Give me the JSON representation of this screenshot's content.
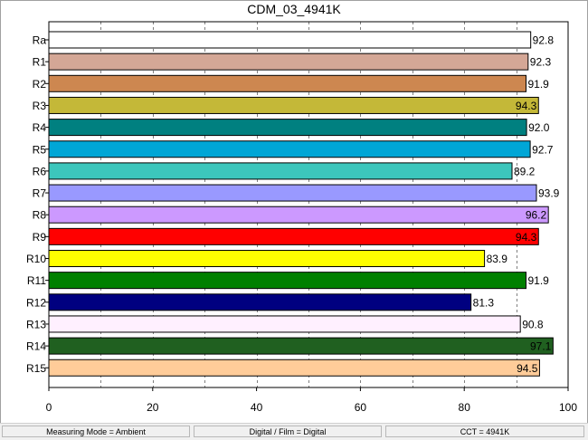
{
  "chart_data": {
    "type": "bar",
    "orientation": "horizontal",
    "title": "CDM_03_4941K",
    "categories": [
      "Ra",
      "R1",
      "R2",
      "R3",
      "R4",
      "R5",
      "R6",
      "R7",
      "R8",
      "R9",
      "R10",
      "R11",
      "R12",
      "R13",
      "R14",
      "R15"
    ],
    "values": [
      92.8,
      92.3,
      91.9,
      94.3,
      92.0,
      92.7,
      89.2,
      93.9,
      96.2,
      94.3,
      83.9,
      91.9,
      81.3,
      90.8,
      97.1,
      94.5
    ],
    "value_labels": [
      "92.8",
      "92.3",
      "91.9",
      "94.3",
      "92.0",
      "92.7",
      "89.2",
      "93.9",
      "96.2",
      "94.3",
      "83.9",
      "91.9",
      "81.3",
      "90.8",
      "97.1",
      "94.5"
    ],
    "label_inside": [
      false,
      false,
      false,
      true,
      false,
      false,
      false,
      false,
      true,
      true,
      false,
      false,
      false,
      false,
      true,
      true
    ],
    "colors": [
      "#ffffff",
      "#d4a796",
      "#cd8750",
      "#c4b838",
      "#008080",
      "#00a6d6",
      "#3cc6bc",
      "#9999ff",
      "#cc99ff",
      "#ff0000",
      "#ffff00",
      "#008000",
      "#000080",
      "#fff0ff",
      "#206020",
      "#ffcc99"
    ],
    "xlim": [
      0,
      100
    ],
    "xticks": [
      "0",
      "20",
      "40",
      "60",
      "80",
      "100"
    ],
    "xlabel": "",
    "ylabel": "",
    "grid": "vertical-dashed",
    "legend": "none"
  },
  "status_bar": {
    "measuring_mode": "Measuring Mode = Ambient",
    "digital_film": "Digital / Film = Digital",
    "cct": "CCT = 4941K"
  }
}
